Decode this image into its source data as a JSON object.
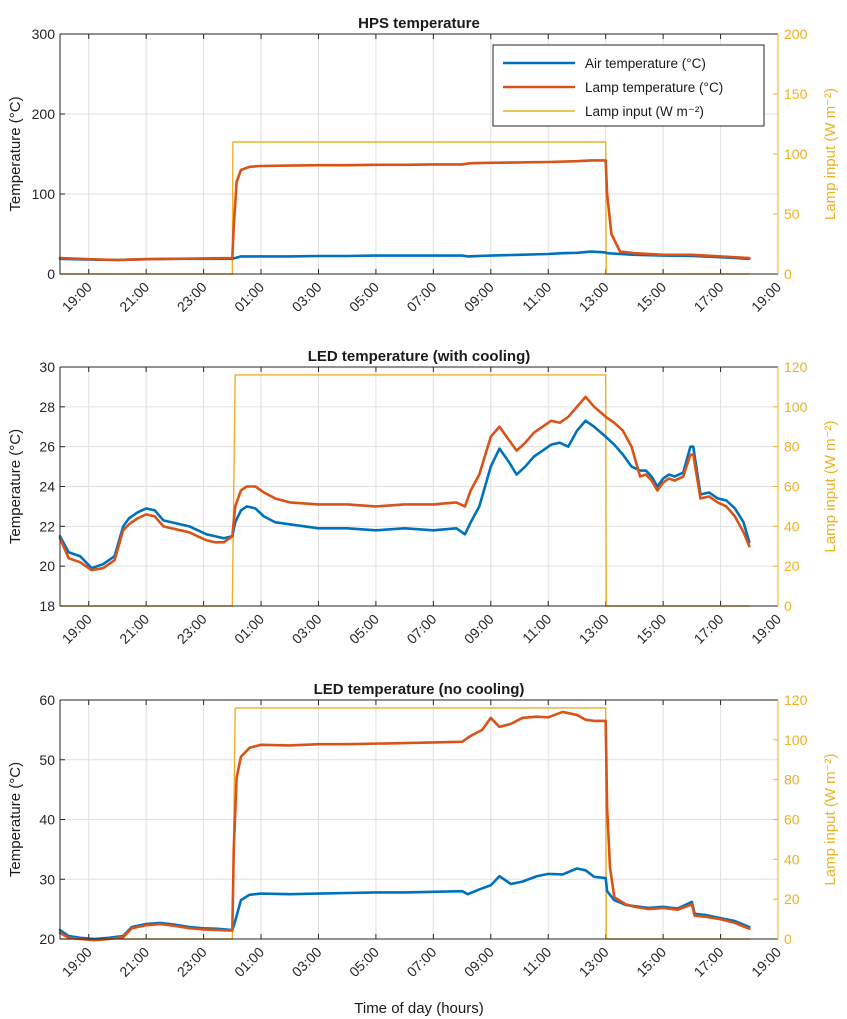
{
  "colors": {
    "air": "#0072BD",
    "lamp": "#D95319",
    "input": "#EDB120",
    "grid": "#e0e0e0",
    "axis": "#262626"
  },
  "chart_data": [
    {
      "type": "line",
      "title": "HPS temperature",
      "ylabel": "Temperature (°C)",
      "y2label": "Lamp input (W m⁻²)",
      "xlabel": "",
      "xlim": [
        18,
        43
      ],
      "ylim": [
        0,
        300
      ],
      "y2lim": [
        0,
        200
      ],
      "yticks": [
        0,
        100,
        200,
        300
      ],
      "y2ticks": [
        0,
        50,
        100,
        150,
        200
      ],
      "xtick_labels": [
        "19:00",
        "21:00",
        "23:00",
        "01:00",
        "03:00",
        "05:00",
        "07:00",
        "09:00",
        "11:00",
        "13:00",
        "15:00",
        "17:00",
        "19:00"
      ],
      "legend": {
        "placement": "top-right",
        "entries": [
          "Air temperature (°C)",
          "Lamp temperature (°C)",
          "Lamp input (W m⁻²)"
        ]
      },
      "series": [
        {
          "name": "Air temperature (°C)",
          "axis": "left",
          "color_key": "air",
          "x": [
            18,
            19,
            20,
            21,
            22,
            23,
            24,
            24.1,
            24.3,
            25,
            26,
            27,
            28,
            29,
            30,
            31,
            32,
            32.2,
            33,
            34,
            35,
            35.5,
            36,
            36.5,
            37,
            37.05,
            37.5,
            38,
            39,
            40,
            41,
            42
          ],
          "y": [
            19,
            18,
            17.5,
            18.5,
            19,
            19,
            19,
            20,
            22,
            22,
            22,
            22.5,
            22.5,
            23,
            23,
            23,
            23,
            22,
            23,
            24,
            25,
            26,
            26.5,
            28,
            27,
            26,
            25,
            24,
            23,
            22.5,
            21,
            19
          ]
        },
        {
          "name": "Lamp temperature (°C)",
          "axis": "left",
          "color_key": "lamp",
          "x": [
            18,
            19,
            20,
            21,
            22,
            23,
            24,
            24.05,
            24.15,
            24.3,
            24.6,
            25,
            26,
            27,
            28,
            29,
            30,
            31,
            32,
            32.3,
            33,
            34,
            35,
            36,
            36.5,
            37,
            37.05,
            37.2,
            37.5,
            38,
            39,
            40,
            41,
            42
          ],
          "y": [
            20,
            18.5,
            17.5,
            18.5,
            19,
            19.5,
            20,
            60,
            115,
            130,
            134,
            135,
            135.5,
            136,
            136,
            136.5,
            136.5,
            137,
            137,
            138.5,
            139,
            139.5,
            140,
            141,
            142,
            142,
            100,
            50,
            28,
            26,
            24,
            24,
            22,
            20
          ]
        },
        {
          "name": "Lamp input (W m⁻²)",
          "axis": "right",
          "color_key": "input",
          "x": [
            18,
            24,
            24.02,
            37,
            37.02,
            42
          ],
          "y": [
            0,
            0,
            110,
            110,
            0,
            0
          ]
        }
      ]
    },
    {
      "type": "line",
      "title": "LED temperature (with cooling)",
      "ylabel": "Temperature (°C)",
      "y2label": "Lamp input (W m⁻²)",
      "xlabel": "",
      "xlim": [
        18,
        43
      ],
      "ylim": [
        18,
        30
      ],
      "y2lim": [
        0,
        120
      ],
      "yticks": [
        18,
        20,
        22,
        24,
        26,
        28,
        30
      ],
      "y2ticks": [
        0,
        20,
        40,
        60,
        80,
        100,
        120
      ],
      "xtick_labels": [
        "19:00",
        "21:00",
        "23:00",
        "01:00",
        "03:00",
        "05:00",
        "07:00",
        "09:00",
        "11:00",
        "13:00",
        "15:00",
        "17:00",
        "19:00"
      ],
      "series": [
        {
          "name": "Air temperature (°C)",
          "axis": "left",
          "color_key": "air",
          "x": [
            18,
            18.3,
            18.7,
            19.1,
            19.5,
            19.9,
            20.2,
            20.4,
            20.7,
            21.0,
            21.3,
            21.6,
            21.9,
            22.2,
            22.5,
            22.8,
            23.1,
            23.4,
            23.7,
            24.0,
            24.1,
            24.3,
            24.5,
            24.8,
            25.1,
            25.5,
            26,
            27,
            28,
            29,
            30,
            31,
            31.8,
            32.1,
            32.3,
            32.6,
            33,
            33.3,
            33.6,
            33.9,
            34.2,
            34.5,
            34.8,
            35.1,
            35.4,
            35.7,
            36.0,
            36.3,
            36.6,
            37,
            37.3,
            37.6,
            37.9,
            38.2,
            38.4,
            38.6,
            38.8,
            39,
            39.2,
            39.4,
            39.7,
            39.95,
            40.05,
            40.3,
            40.6,
            40.9,
            41.2,
            41.5,
            41.8,
            42
          ],
          "y": [
            21.5,
            20.7,
            20.5,
            19.9,
            20.1,
            20.5,
            22.0,
            22.4,
            22.7,
            22.9,
            22.8,
            22.3,
            22.2,
            22.1,
            22.0,
            21.8,
            21.6,
            21.5,
            21.4,
            21.5,
            22.2,
            22.8,
            23.0,
            22.9,
            22.5,
            22.2,
            22.1,
            21.9,
            21.9,
            21.8,
            21.9,
            21.8,
            21.9,
            21.6,
            22.2,
            23.0,
            25.0,
            25.9,
            25.3,
            24.6,
            25.0,
            25.5,
            25.8,
            26.1,
            26.2,
            26.0,
            26.8,
            27.3,
            27.0,
            26.5,
            26.1,
            25.6,
            25.0,
            24.8,
            24.8,
            24.5,
            24.0,
            24.4,
            24.6,
            24.5,
            24.7,
            26.0,
            26.0,
            23.6,
            23.7,
            23.4,
            23.3,
            22.9,
            22.2,
            21.2
          ]
        },
        {
          "name": "Lamp temperature (°C)",
          "axis": "left",
          "color_key": "lamp",
          "x": [
            18,
            18.3,
            18.7,
            19.1,
            19.5,
            19.9,
            20.2,
            20.4,
            20.7,
            21.0,
            21.3,
            21.6,
            21.9,
            22.2,
            22.5,
            22.8,
            23.1,
            23.4,
            23.7,
            24.0,
            24.1,
            24.3,
            24.5,
            24.8,
            25.1,
            25.5,
            26,
            27,
            28,
            29,
            30,
            31,
            31.8,
            32.1,
            32.3,
            32.6,
            33,
            33.3,
            33.6,
            33.9,
            34.2,
            34.5,
            34.8,
            35.1,
            35.4,
            35.7,
            36.0,
            36.3,
            36.6,
            37,
            37.3,
            37.6,
            37.9,
            38.2,
            38.4,
            38.6,
            38.8,
            39,
            39.2,
            39.4,
            39.7,
            39.95,
            40.05,
            40.3,
            40.6,
            40.9,
            41.2,
            41.5,
            41.8,
            42
          ],
          "y": [
            21.4,
            20.4,
            20.2,
            19.8,
            19.9,
            20.3,
            21.8,
            22.1,
            22.4,
            22.6,
            22.5,
            22.0,
            21.9,
            21.8,
            21.7,
            21.5,
            21.3,
            21.2,
            21.2,
            21.5,
            23.0,
            23.8,
            24.0,
            24.0,
            23.7,
            23.4,
            23.2,
            23.1,
            23.1,
            23.0,
            23.1,
            23.1,
            23.2,
            23.0,
            23.8,
            24.6,
            26.5,
            27.0,
            26.4,
            25.8,
            26.2,
            26.7,
            27.0,
            27.3,
            27.2,
            27.5,
            28.0,
            28.5,
            28.0,
            27.5,
            27.2,
            26.8,
            26.0,
            24.5,
            24.6,
            24.3,
            23.8,
            24.2,
            24.4,
            24.3,
            24.5,
            25.6,
            25.6,
            23.4,
            23.5,
            23.2,
            23.0,
            22.5,
            21.7,
            21.0
          ]
        },
        {
          "name": "Lamp input (W m⁻²)",
          "axis": "right",
          "color_key": "input",
          "x": [
            18,
            24,
            24.1,
            37,
            37.02,
            42
          ],
          "y": [
            0,
            0,
            116,
            116,
            0,
            0
          ]
        }
      ]
    },
    {
      "type": "line",
      "title": "LED temperature (no cooling)",
      "ylabel": "Temperature (°C)",
      "y2label": "Lamp input (W m⁻²)",
      "xlabel": "Time of day (hours)",
      "xlim": [
        18,
        43
      ],
      "ylim": [
        20,
        60
      ],
      "y2lim": [
        0,
        120
      ],
      "yticks": [
        20,
        30,
        40,
        50,
        60
      ],
      "y2ticks": [
        0,
        20,
        40,
        60,
        80,
        100,
        120
      ],
      "xtick_labels": [
        "19:00",
        "21:00",
        "23:00",
        "01:00",
        "03:00",
        "05:00",
        "07:00",
        "09:00",
        "11:00",
        "13:00",
        "15:00",
        "17:00",
        "19:00"
      ],
      "series": [
        {
          "name": "Air temperature (°C)",
          "axis": "left",
          "color_key": "air",
          "x": [
            18,
            18.3,
            18.7,
            19.2,
            19.7,
            20.2,
            20.5,
            21,
            21.5,
            22,
            22.5,
            23,
            23.5,
            24,
            24.1,
            24.3,
            24.6,
            25,
            26,
            27,
            28,
            29,
            30,
            31,
            32,
            32.2,
            32.6,
            33,
            33.3,
            33.7,
            34.1,
            34.6,
            35,
            35.5,
            36,
            36.3,
            36.6,
            37,
            37.05,
            37.3,
            37.7,
            38,
            38.5,
            39,
            39.5,
            40,
            40.1,
            40.5,
            41,
            41.5,
            42
          ],
          "y": [
            21.5,
            20.5,
            20.2,
            20,
            20.2,
            20.5,
            22,
            22.5,
            22.7,
            22.4,
            22,
            21.8,
            21.7,
            21.5,
            23,
            26.5,
            27.4,
            27.6,
            27.5,
            27.6,
            27.7,
            27.8,
            27.8,
            27.9,
            28,
            27.5,
            28.3,
            29,
            30.5,
            29.2,
            29.6,
            30.5,
            30.9,
            30.8,
            31.8,
            31.5,
            30.4,
            30.2,
            28,
            26.5,
            25.7,
            25.5,
            25.2,
            25.4,
            25.1,
            26.2,
            24.2,
            24,
            23.5,
            23,
            22
          ]
        },
        {
          "name": "Lamp temperature (°C)",
          "axis": "left",
          "color_key": "lamp",
          "x": [
            18,
            18.3,
            18.7,
            19.2,
            19.7,
            20.2,
            20.5,
            21,
            21.5,
            22,
            22.5,
            23,
            23.5,
            24,
            24.05,
            24.15,
            24.3,
            24.6,
            25,
            26,
            27,
            28,
            29,
            30,
            31,
            32,
            32.3,
            32.7,
            33,
            33.3,
            33.7,
            34.1,
            34.6,
            35,
            35.5,
            36,
            36.3,
            36.6,
            37,
            37.05,
            37.15,
            37.3,
            37.7,
            38,
            38.5,
            39,
            39.5,
            40,
            40.1,
            40.5,
            41,
            41.5,
            42
          ],
          "y": [
            21,
            20.2,
            20,
            19.8,
            20,
            20.3,
            21.8,
            22.3,
            22.5,
            22.2,
            21.8,
            21.6,
            21.5,
            21.4,
            35,
            47,
            50.5,
            52,
            52.5,
            52.4,
            52.6,
            52.6,
            52.7,
            52.8,
            52.9,
            53,
            54,
            55,
            57,
            55.5,
            56,
            57,
            57.2,
            57.1,
            58,
            57.5,
            56.7,
            56.5,
            56.5,
            42,
            32,
            27,
            25.8,
            25.4,
            25,
            25.2,
            24.9,
            25.8,
            23.9,
            23.7,
            23.3,
            22.7,
            21.7
          ]
        },
        {
          "name": "Lamp input (W m⁻²)",
          "axis": "right",
          "color_key": "input",
          "x": [
            18,
            24,
            24.1,
            37,
            37.02,
            42
          ],
          "y": [
            0,
            0,
            116,
            116,
            0,
            0
          ]
        }
      ]
    }
  ]
}
